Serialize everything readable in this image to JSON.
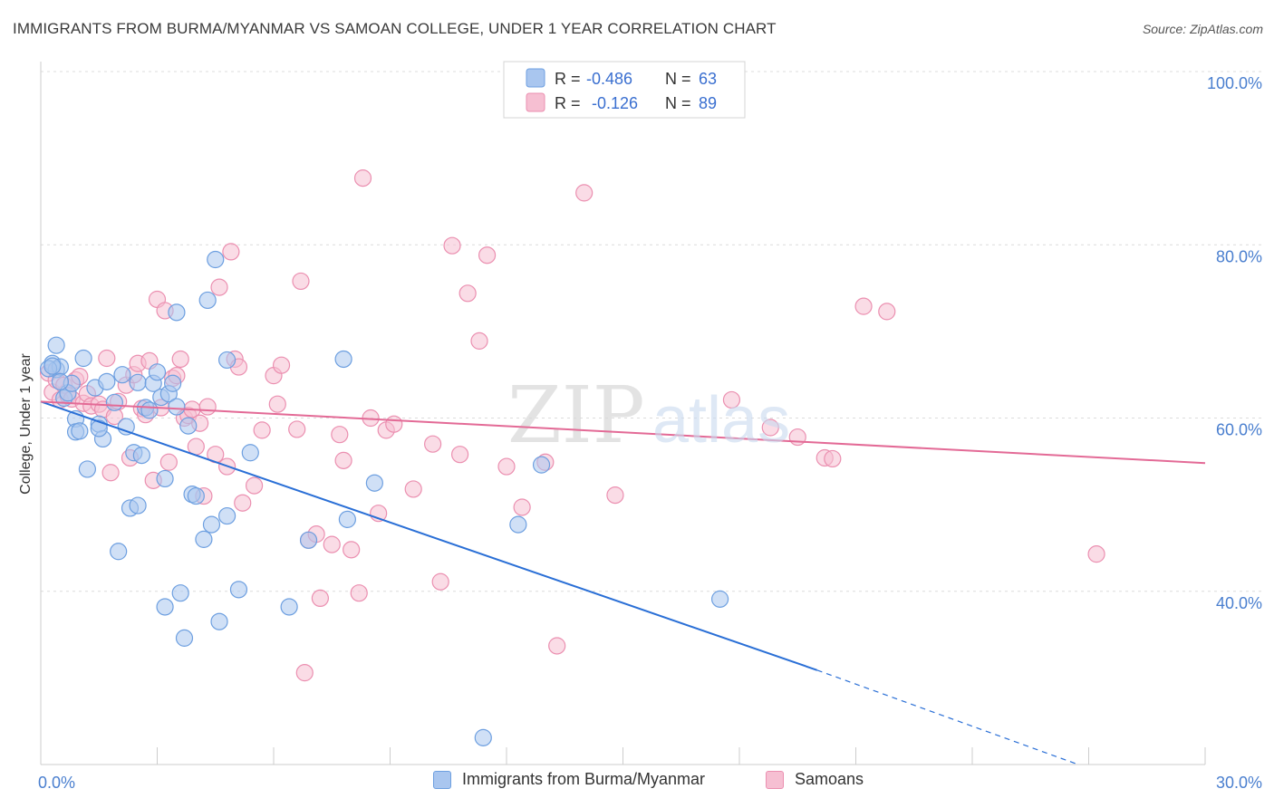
{
  "title": "IMMIGRANTS FROM BURMA/MYANMAR VS SAMOAN COLLEGE, UNDER 1 YEAR CORRELATION CHART",
  "source": "Source: ZipAtlas.com",
  "watermark": "ZIPatlas",
  "legend": {
    "r_label": "R =",
    "n_label": "N =",
    "rows": [
      {
        "r": "-0.486",
        "n": "63"
      },
      {
        "r": "-0.126",
        "n": "89"
      }
    ]
  },
  "colors": {
    "blue_fill": "#a9c6ef",
    "blue_stroke": "#6d9fe0",
    "blue_line": "#2a6fd6",
    "pink_fill": "#f6bfd2",
    "pink_stroke": "#eb8fb0",
    "pink_line": "#e36a96",
    "tick_text": "#4a7fcf",
    "grid": "#dddddd"
  },
  "chart_data": {
    "type": "scatter",
    "title": "IMMIGRANTS FROM BURMA/MYANMAR VS SAMOAN COLLEGE, UNDER 1 YEAR CORRELATION CHART",
    "xlabel": "",
    "ylabel": "College, Under 1 year",
    "xlim": [
      0,
      30
    ],
    "ylim": [
      20,
      102
    ],
    "x_tick_labels": [
      "0.0%",
      "30.0%"
    ],
    "y_tick_labels": [
      "40.0%",
      "60.0%",
      "80.0%",
      "100.0%"
    ],
    "y_ticks": [
      40,
      60,
      80,
      100
    ],
    "grid": true,
    "legend_position": "top-center",
    "series": [
      {
        "name": "Immigrants from Burma/Myanmar",
        "color": "#a9c6ef",
        "r": -0.486,
        "n": 63,
        "trend": {
          "x0": 0,
          "y0": 61.9,
          "x1": 20,
          "y1": 30.9,
          "dashed_to_x": 30,
          "dashed_to_y": 15.5
        },
        "points": [
          [
            0.3,
            66.3
          ],
          [
            0.4,
            65.6
          ],
          [
            0.4,
            68.4
          ],
          [
            0.5,
            65.9
          ],
          [
            0.6,
            62.3
          ],
          [
            0.7,
            62.9
          ],
          [
            0.8,
            64.0
          ],
          [
            0.9,
            59.9
          ],
          [
            0.9,
            58.4
          ],
          [
            1.1,
            66.9
          ],
          [
            1.2,
            54.1
          ],
          [
            1.4,
            63.5
          ],
          [
            1.5,
            59.3
          ],
          [
            1.6,
            57.6
          ],
          [
            1.5,
            58.8
          ],
          [
            1.7,
            64.2
          ],
          [
            1.9,
            61.8
          ],
          [
            2.1,
            65.0
          ],
          [
            2.2,
            59.0
          ],
          [
            2.3,
            49.6
          ],
          [
            2.5,
            49.9
          ],
          [
            2.4,
            56.0
          ],
          [
            2.5,
            64.1
          ],
          [
            2.6,
            55.7
          ],
          [
            2.7,
            61.2
          ],
          [
            2.8,
            60.9
          ],
          [
            2.9,
            64.0
          ],
          [
            3.0,
            65.3
          ],
          [
            3.1,
            62.4
          ],
          [
            3.2,
            53.0
          ],
          [
            3.2,
            38.2
          ],
          [
            3.3,
            62.8
          ],
          [
            3.4,
            64.0
          ],
          [
            3.5,
            61.3
          ],
          [
            3.5,
            72.2
          ],
          [
            3.6,
            39.8
          ],
          [
            3.7,
            34.6
          ],
          [
            3.8,
            59.1
          ],
          [
            3.9,
            51.2
          ],
          [
            4.0,
            51.0
          ],
          [
            4.2,
            46.0
          ],
          [
            4.3,
            73.6
          ],
          [
            4.4,
            47.7
          ],
          [
            4.5,
            78.3
          ],
          [
            4.6,
            36.5
          ],
          [
            4.8,
            48.7
          ],
          [
            4.8,
            66.7
          ],
          [
            5.1,
            40.2
          ],
          [
            5.4,
            56.0
          ],
          [
            6.4,
            38.2
          ],
          [
            6.9,
            45.9
          ],
          [
            7.8,
            66.8
          ],
          [
            7.9,
            48.3
          ],
          [
            8.6,
            52.5
          ],
          [
            11.4,
            23.1
          ],
          [
            12.3,
            47.7
          ],
          [
            12.9,
            54.6
          ],
          [
            17.5,
            39.1
          ],
          [
            0.2,
            65.7
          ],
          [
            0.5,
            64.2
          ],
          [
            1.0,
            58.5
          ],
          [
            2.0,
            44.6
          ],
          [
            0.3,
            66.0
          ]
        ]
      },
      {
        "name": "Samoans",
        "color": "#f6bfd2",
        "r": -0.126,
        "n": 89,
        "trend": {
          "x0": 0,
          "y0": 61.9,
          "x1": 30,
          "y1": 54.8
        },
        "points": [
          [
            0.2,
            65.2
          ],
          [
            0.3,
            63.0
          ],
          [
            0.4,
            64.4
          ],
          [
            0.5,
            62.1
          ],
          [
            0.6,
            63.8
          ],
          [
            0.7,
            62.6
          ],
          [
            0.8,
            62.2
          ],
          [
            0.9,
            64.4
          ],
          [
            1.0,
            64.8
          ],
          [
            1.1,
            61.7
          ],
          [
            1.2,
            62.8
          ],
          [
            1.3,
            61.4
          ],
          [
            1.5,
            61.6
          ],
          [
            1.6,
            61.0
          ],
          [
            1.7,
            66.9
          ],
          [
            1.8,
            53.7
          ],
          [
            1.9,
            60.2
          ],
          [
            2.0,
            61.9
          ],
          [
            2.2,
            63.8
          ],
          [
            2.3,
            55.4
          ],
          [
            2.4,
            65.0
          ],
          [
            2.5,
            66.3
          ],
          [
            2.6,
            61.1
          ],
          [
            2.7,
            60.4
          ],
          [
            2.8,
            66.6
          ],
          [
            2.9,
            52.8
          ],
          [
            3.0,
            73.7
          ],
          [
            3.1,
            61.2
          ],
          [
            3.2,
            72.4
          ],
          [
            3.3,
            54.9
          ],
          [
            3.4,
            64.6
          ],
          [
            3.5,
            64.9
          ],
          [
            3.6,
            66.8
          ],
          [
            3.7,
            60.0
          ],
          [
            3.8,
            60.3
          ],
          [
            3.9,
            61.0
          ],
          [
            4.0,
            56.7
          ],
          [
            4.1,
            59.4
          ],
          [
            4.2,
            51.0
          ],
          [
            4.3,
            61.3
          ],
          [
            4.5,
            55.8
          ],
          [
            4.6,
            75.1
          ],
          [
            4.8,
            54.4
          ],
          [
            4.9,
            79.2
          ],
          [
            5.0,
            66.8
          ],
          [
            5.1,
            65.9
          ],
          [
            5.2,
            50.2
          ],
          [
            5.5,
            52.2
          ],
          [
            5.7,
            58.6
          ],
          [
            6.0,
            64.9
          ],
          [
            6.1,
            61.6
          ],
          [
            6.2,
            66.1
          ],
          [
            6.6,
            58.7
          ],
          [
            6.7,
            75.8
          ],
          [
            6.9,
            45.9
          ],
          [
            7.1,
            46.6
          ],
          [
            7.2,
            39.2
          ],
          [
            6.8,
            30.6
          ],
          [
            7.5,
            45.4
          ],
          [
            7.7,
            58.1
          ],
          [
            7.8,
            55.1
          ],
          [
            8.0,
            44.8
          ],
          [
            8.2,
            39.8
          ],
          [
            8.3,
            87.7
          ],
          [
            8.5,
            60.0
          ],
          [
            8.7,
            49.0
          ],
          [
            8.9,
            58.6
          ],
          [
            9.1,
            59.3
          ],
          [
            9.6,
            51.8
          ],
          [
            10.1,
            57.0
          ],
          [
            10.3,
            41.1
          ],
          [
            10.6,
            79.9
          ],
          [
            10.8,
            55.8
          ],
          [
            11.0,
            74.4
          ],
          [
            11.3,
            68.9
          ],
          [
            11.5,
            78.8
          ],
          [
            12.0,
            54.4
          ],
          [
            12.4,
            49.7
          ],
          [
            13.0,
            54.9
          ],
          [
            13.3,
            33.7
          ],
          [
            14.0,
            86.0
          ],
          [
            14.8,
            51.1
          ],
          [
            17.8,
            62.1
          ],
          [
            18.8,
            58.9
          ],
          [
            19.5,
            57.8
          ],
          [
            20.2,
            55.4
          ],
          [
            20.4,
            55.3
          ],
          [
            21.2,
            72.9
          ],
          [
            21.8,
            72.3
          ]
        ]
      }
    ],
    "extra_points": [
      [
        27.2,
        44.3
      ]
    ]
  }
}
